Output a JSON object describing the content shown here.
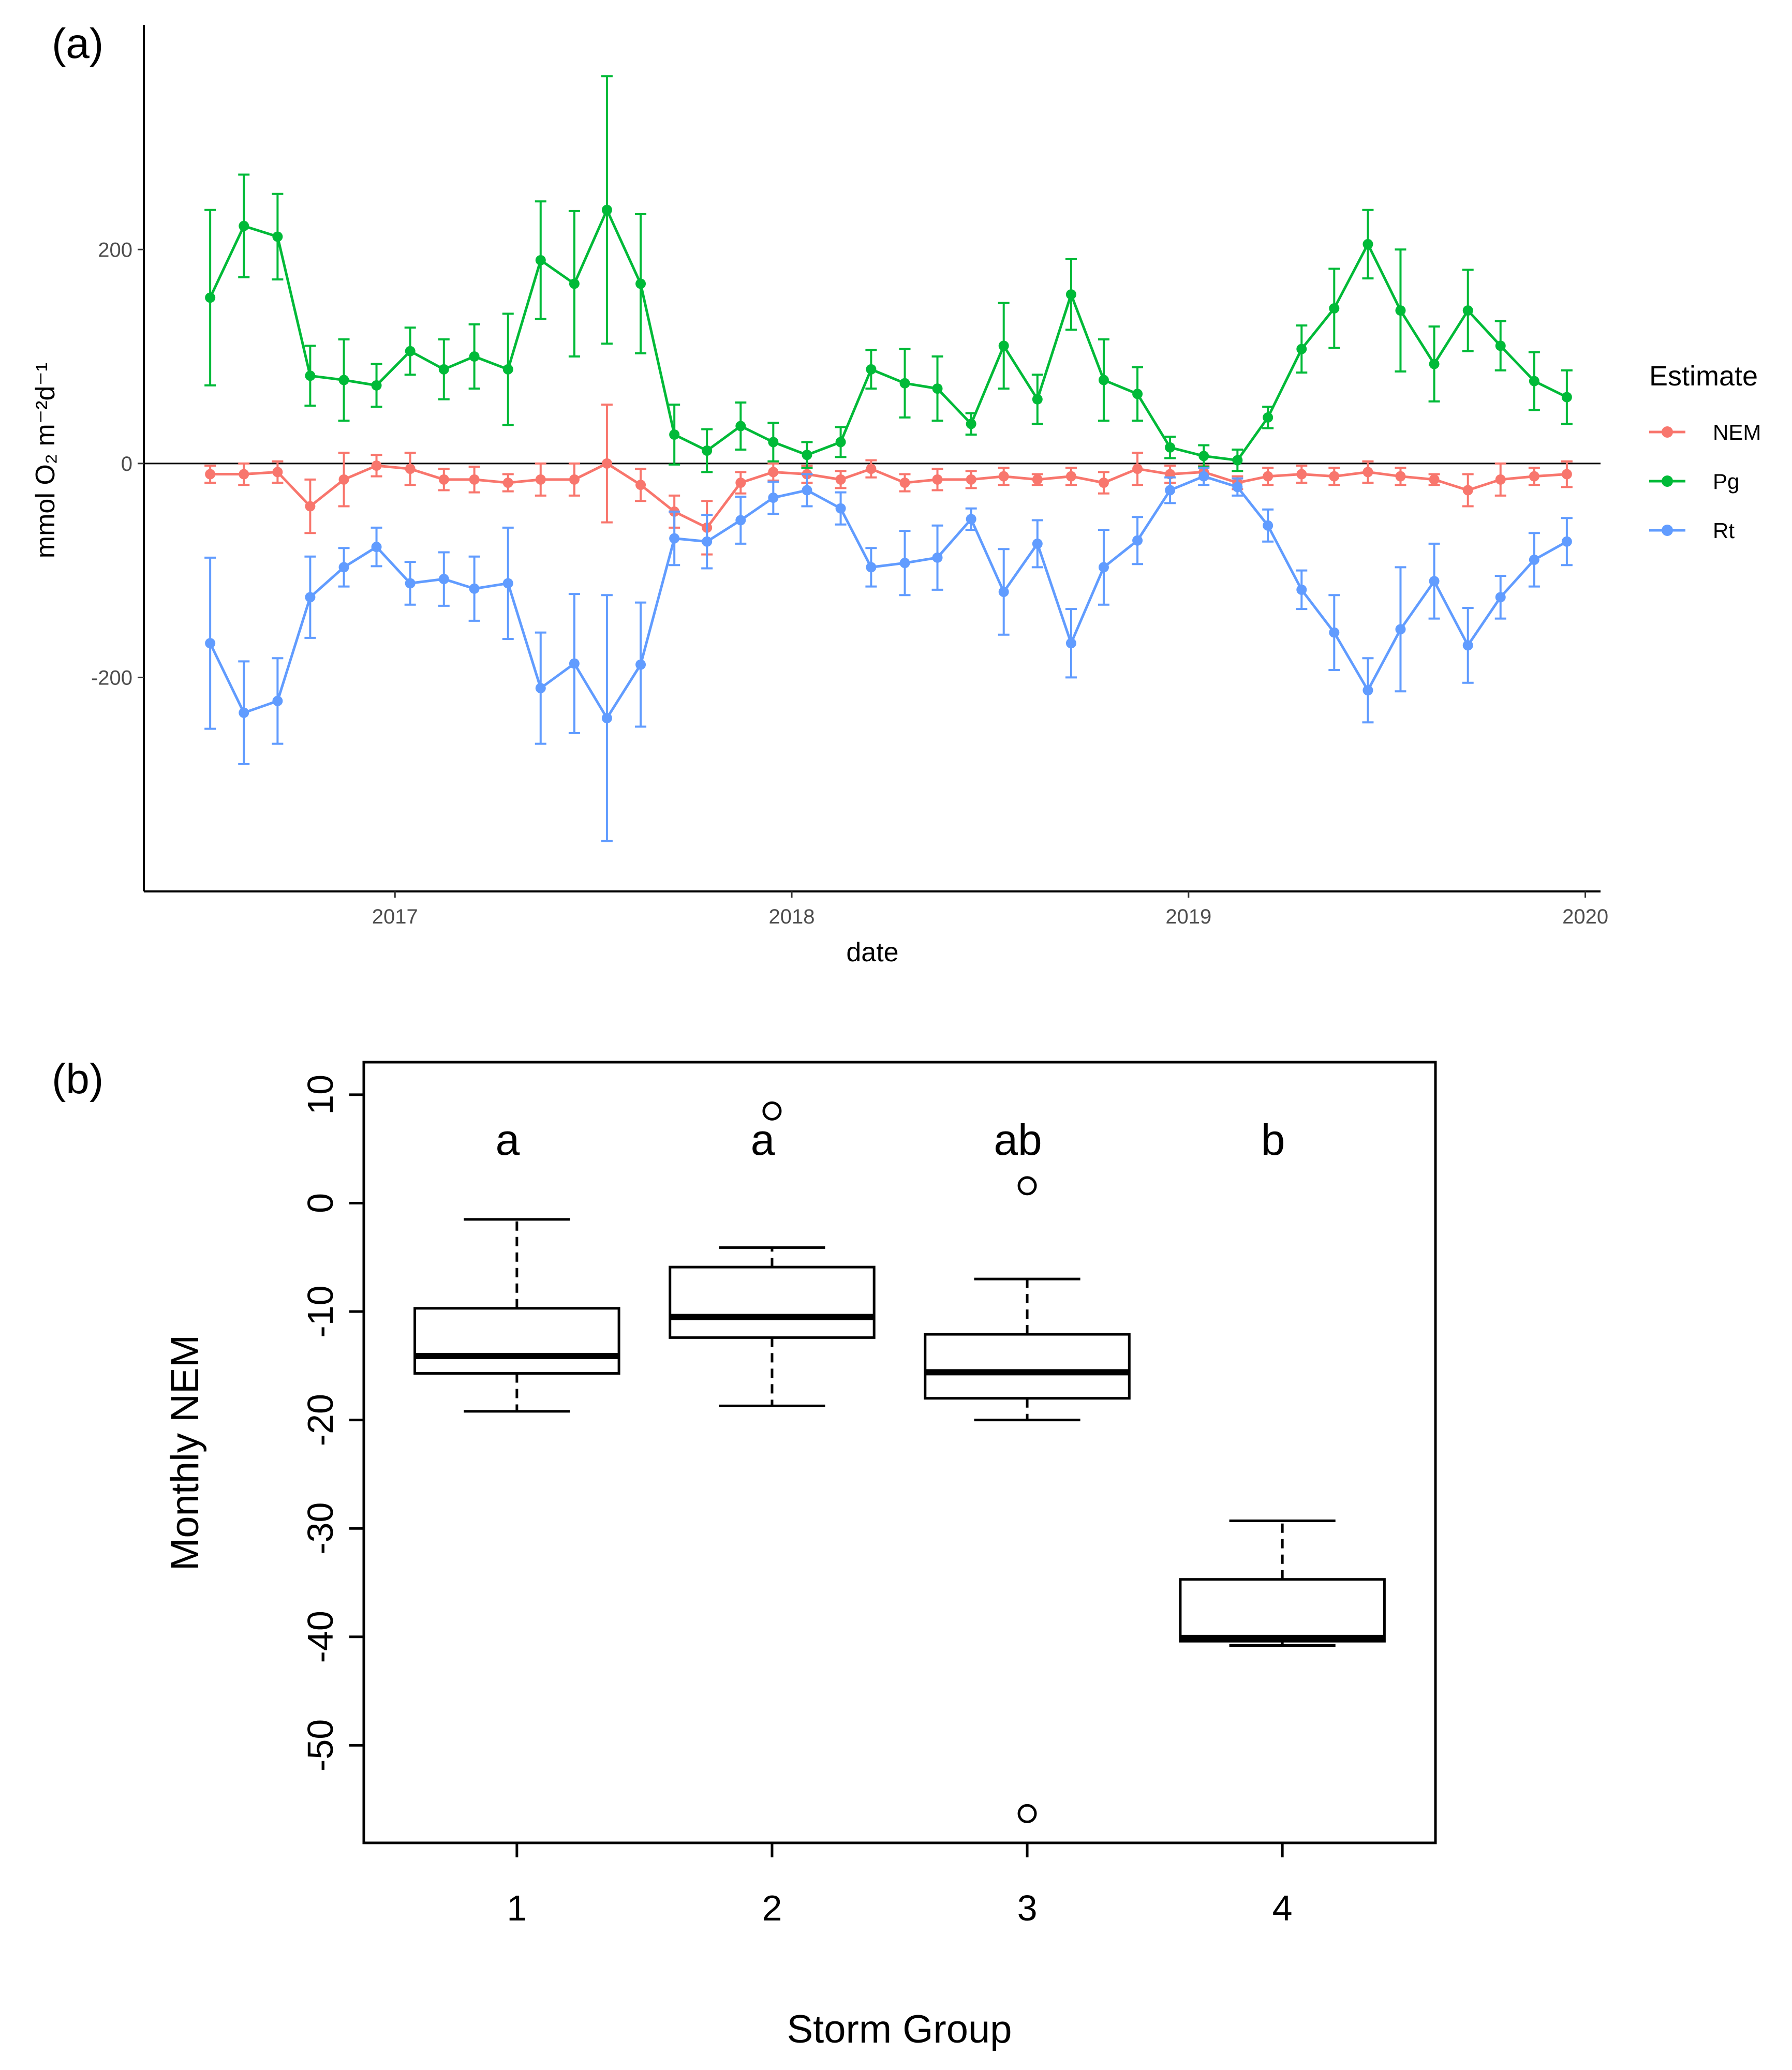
{
  "chart_data": [
    {
      "panel_label": "(a)",
      "type": "line",
      "xlabel": "date",
      "ylabel": "mmol O₂ m⁻²d⁻¹",
      "x_ticks": [
        "2017",
        "2018",
        "2019",
        "2020"
      ],
      "y_ticks": [
        "-200",
        "0",
        "200"
      ],
      "xlim": [
        "2016-05-15",
        "2020-01-15"
      ],
      "ylim": [
        -400,
        410
      ],
      "legend": {
        "title": "Estimate",
        "position": "right"
      },
      "reference_line": 0,
      "x": [
        "2016-07-15",
        "2016-08-15",
        "2016-09-15",
        "2016-10-15",
        "2016-11-15",
        "2016-12-15",
        "2017-01-15",
        "2017-02-15",
        "2017-03-15",
        "2017-04-15",
        "2017-05-15",
        "2017-06-15",
        "2017-07-15",
        "2017-08-15",
        "2017-09-15",
        "2017-10-15",
        "2017-11-15",
        "2017-12-15",
        "2018-01-15",
        "2018-02-15",
        "2018-03-15",
        "2018-04-15",
        "2018-05-15",
        "2018-06-15",
        "2018-07-15",
        "2018-08-15",
        "2018-09-15",
        "2018-10-15",
        "2018-11-15",
        "2018-12-15",
        "2019-01-15",
        "2019-02-15",
        "2019-03-15",
        "2019-04-15",
        "2019-05-15",
        "2019-06-15",
        "2019-07-15",
        "2019-08-15",
        "2019-09-15",
        "2019-10-15",
        "2019-11-15",
        "2019-12-15"
      ],
      "series": [
        {
          "name": "NEM",
          "color": "#F8766D",
          "values": [
            -10,
            -10,
            -8,
            -40,
            -15,
            -2,
            -5,
            -15,
            -15,
            -18,
            -15,
            -15,
            0,
            -20,
            -45,
            -60,
            -18,
            -8,
            -10,
            -15,
            -5,
            -18,
            -15,
            -15,
            -12,
            -15,
            -12,
            -18,
            -5,
            -10,
            -8,
            -18,
            -12,
            -10,
            -12,
            -8,
            -12,
            -15,
            -25,
            -15,
            -12,
            -10
          ],
          "err": [
            8,
            10,
            10,
            25,
            25,
            10,
            15,
            10,
            12,
            8,
            15,
            15,
            55,
            15,
            15,
            25,
            10,
            8,
            8,
            8,
            8,
            8,
            10,
            8,
            8,
            5,
            8,
            10,
            15,
            8,
            6,
            6,
            8,
            8,
            8,
            10,
            8,
            5,
            15,
            15,
            8,
            12
          ]
        },
        {
          "name": "Pg",
          "color": "#00BA38",
          "values": [
            155,
            222,
            212,
            82,
            78,
            73,
            105,
            88,
            100,
            88,
            190,
            168,
            237,
            168,
            27,
            12,
            35,
            20,
            8,
            20,
            88,
            75,
            70,
            37,
            110,
            60,
            158,
            78,
            65,
            15,
            7,
            3,
            43,
            107,
            145,
            205,
            143,
            93,
            143,
            110,
            77,
            62
          ],
          "err": [
            82,
            48,
            40,
            28,
            38,
            20,
            22,
            28,
            30,
            52,
            55,
            68,
            125,
            65,
            28,
            20,
            22,
            18,
            12,
            14,
            18,
            32,
            30,
            10,
            40,
            23,
            33,
            38,
            25,
            10,
            10,
            10,
            10,
            22,
            37,
            32,
            57,
            35,
            38,
            23,
            27,
            25
          ]
        },
        {
          "name": "Rt",
          "color": "#619CFF",
          "values": [
            -168,
            -233,
            -222,
            -125,
            -97,
            -78,
            -112,
            -108,
            -117,
            -112,
            -210,
            -187,
            -238,
            -188,
            -70,
            -73,
            -53,
            -32,
            -25,
            -42,
            -97,
            -93,
            -88,
            -52,
            -120,
            -75,
            -168,
            -97,
            -72,
            -25,
            -12,
            -22,
            -58,
            -118,
            -158,
            -212,
            -155,
            -110,
            -170,
            -125,
            -90,
            -73
          ],
          "err": [
            80,
            48,
            40,
            38,
            18,
            18,
            20,
            25,
            30,
            52,
            52,
            65,
            115,
            58,
            25,
            25,
            22,
            15,
            15,
            15,
            18,
            30,
            30,
            10,
            40,
            22,
            32,
            35,
            22,
            12,
            8,
            8,
            15,
            18,
            35,
            30,
            58,
            35,
            35,
            20,
            25,
            22
          ]
        }
      ]
    },
    {
      "panel_label": "(b)",
      "type": "box",
      "xlabel": "Storm Group",
      "ylabel": "Monthly NEM",
      "categories": [
        "1",
        "2",
        "3",
        "4"
      ],
      "y_ticks": [
        "10",
        "0",
        "-10",
        "-20",
        "-30",
        "-40",
        "-50"
      ],
      "ylim": [
        -59,
        13
      ],
      "boxes": [
        {
          "group": "1",
          "whisker_low": -19.2,
          "q1": -15.7,
          "median": -14.1,
          "q3": -9.7,
          "whisker_high": -1.5,
          "outliers": [],
          "letter": "a"
        },
        {
          "group": "2",
          "whisker_low": -18.7,
          "q1": -12.4,
          "median": -10.5,
          "q3": -5.9,
          "whisker_high": -4.1,
          "outliers": [
            8.5
          ],
          "letter": "a"
        },
        {
          "group": "3",
          "whisker_low": -20.0,
          "q1": -18.0,
          "median": -15.6,
          "q3": -12.1,
          "whisker_high": -7.0,
          "outliers": [
            1.6,
            -56.3
          ],
          "letter": "ab"
        },
        {
          "group": "4",
          "whisker_low": -40.8,
          "q1": -40.4,
          "median": -40.1,
          "q3": -34.7,
          "whisker_high": -29.3,
          "outliers": [],
          "letter": "b"
        }
      ]
    }
  ]
}
